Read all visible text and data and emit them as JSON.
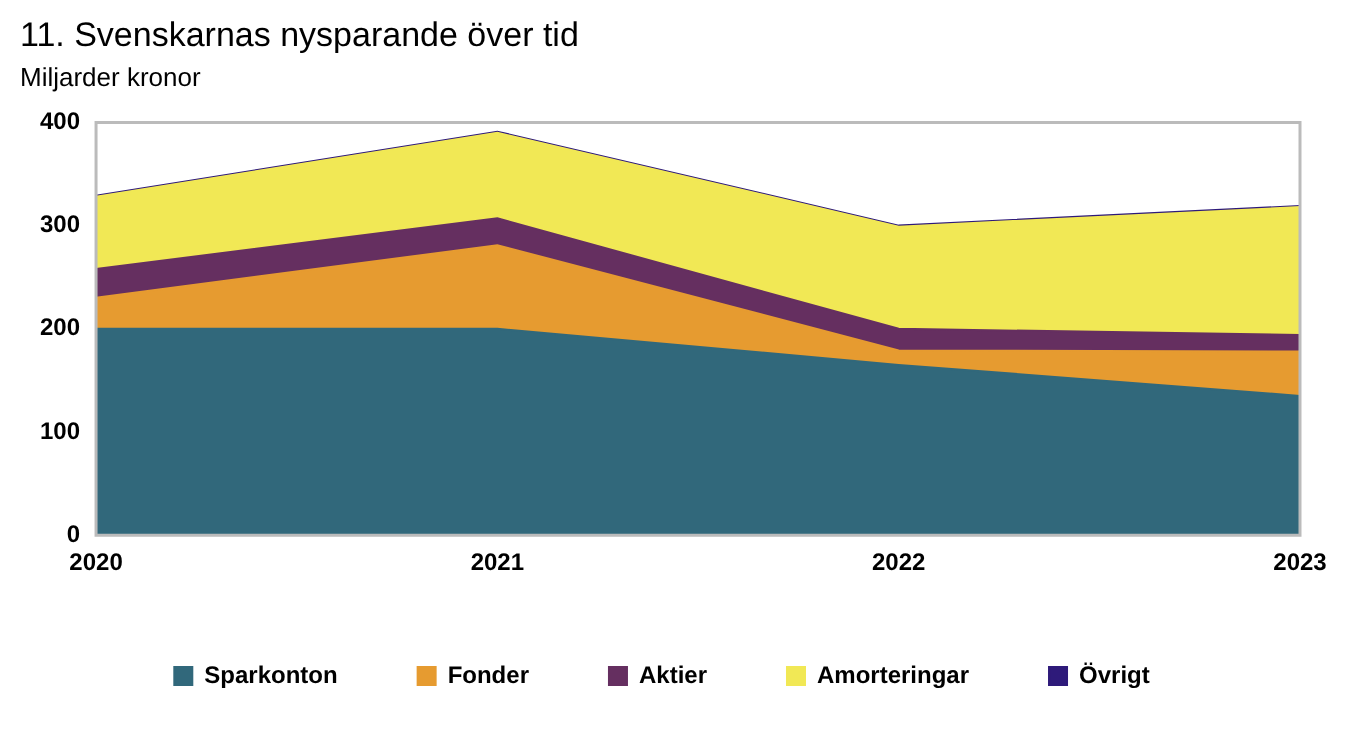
{
  "chart_data": {
    "type": "area",
    "title": "11. Svenskarnas nysparande över tid",
    "subtitle": "Miljarder kronor",
    "categories": [
      "2020",
      "2021",
      "2022",
      "2023"
    ],
    "stacked": true,
    "series": [
      {
        "name": "Sparkonton",
        "color": "#31687b",
        "values": [
          200,
          200,
          165,
          135
        ]
      },
      {
        "name": "Fonder",
        "color": "#e69b30",
        "values": [
          30,
          81,
          14,
          43
        ]
      },
      {
        "name": "Aktier",
        "color": "#652f60",
        "values": [
          28,
          26,
          21,
          16
        ]
      },
      {
        "name": "Amorteringar",
        "color": "#f1e855",
        "values": [
          70,
          83,
          99,
          124
        ]
      },
      {
        "name": "Övrigt",
        "color": "#2e1a7a",
        "values": [
          1,
          1,
          1,
          1
        ]
      }
    ],
    "ylim": [
      0,
      400
    ],
    "yticks": [
      0,
      100,
      200,
      300,
      400
    ],
    "grid": false,
    "legend": "bottom"
  }
}
